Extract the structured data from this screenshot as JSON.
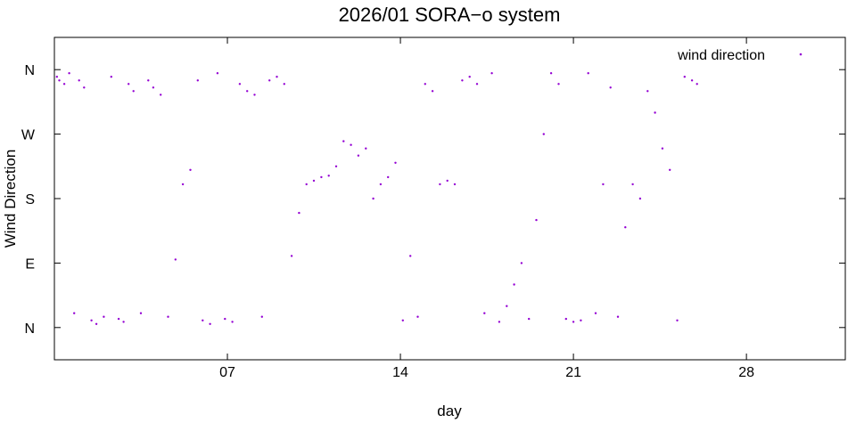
{
  "chart_data": {
    "type": "scatter",
    "title": "2026/01 SORA−o system",
    "xlabel": "day",
    "ylabel": "Wind Direction",
    "xlim": [
      0,
      32
    ],
    "ylim": [
      -45,
      405
    ],
    "x_ticks": [
      {
        "value": 7,
        "label": "07"
      },
      {
        "value": 14,
        "label": "14"
      },
      {
        "value": 21,
        "label": "21"
      },
      {
        "value": 28,
        "label": "28"
      }
    ],
    "y_ticks": [
      {
        "value": 0,
        "label": "N"
      },
      {
        "value": 90,
        "label": "E"
      },
      {
        "value": 180,
        "label": "S"
      },
      {
        "value": 270,
        "label": "W"
      },
      {
        "value": 360,
        "label": "N"
      }
    ],
    "legend": {
      "position": "top-right"
    },
    "grid": false,
    "series": [
      {
        "name": "wind direction",
        "color": "#9400d3",
        "points": [
          [
            0.1,
            350
          ],
          [
            0.2,
            345
          ],
          [
            0.4,
            340
          ],
          [
            0.6,
            355
          ],
          [
            0.8,
            20
          ],
          [
            1.0,
            345
          ],
          [
            1.2,
            335
          ],
          [
            1.5,
            10
          ],
          [
            1.7,
            5
          ],
          [
            2.0,
            15
          ],
          [
            2.3,
            350
          ],
          [
            2.6,
            12
          ],
          [
            2.8,
            8
          ],
          [
            3.0,
            340
          ],
          [
            3.2,
            330
          ],
          [
            3.5,
            20
          ],
          [
            3.8,
            345
          ],
          [
            4.0,
            335
          ],
          [
            4.3,
            325
          ],
          [
            4.6,
            15
          ],
          [
            4.9,
            95
          ],
          [
            5.2,
            200
          ],
          [
            5.5,
            220
          ],
          [
            5.8,
            345
          ],
          [
            6.0,
            10
          ],
          [
            6.3,
            5
          ],
          [
            6.6,
            355
          ],
          [
            6.9,
            12
          ],
          [
            7.2,
            8
          ],
          [
            7.5,
            340
          ],
          [
            7.8,
            330
          ],
          [
            8.1,
            325
          ],
          [
            8.4,
            15
          ],
          [
            8.7,
            345
          ],
          [
            9.0,
            350
          ],
          [
            9.3,
            340
          ],
          [
            9.6,
            100
          ],
          [
            9.9,
            160
          ],
          [
            10.2,
            200
          ],
          [
            10.5,
            205
          ],
          [
            10.8,
            210
          ],
          [
            11.1,
            212
          ],
          [
            11.4,
            225
          ],
          [
            11.7,
            260
          ],
          [
            12.0,
            255
          ],
          [
            12.3,
            240
          ],
          [
            12.6,
            250
          ],
          [
            12.9,
            180
          ],
          [
            13.2,
            200
          ],
          [
            13.5,
            210
          ],
          [
            13.8,
            230
          ],
          [
            14.1,
            10
          ],
          [
            14.4,
            100
          ],
          [
            14.7,
            15
          ],
          [
            15.0,
            340
          ],
          [
            15.3,
            330
          ],
          [
            15.6,
            200
          ],
          [
            15.9,
            205
          ],
          [
            16.2,
            200
          ],
          [
            16.5,
            345
          ],
          [
            16.8,
            350
          ],
          [
            17.1,
            340
          ],
          [
            17.4,
            20
          ],
          [
            17.7,
            355
          ],
          [
            18.0,
            8
          ],
          [
            18.3,
            30
          ],
          [
            18.6,
            60
          ],
          [
            18.9,
            90
          ],
          [
            19.2,
            12
          ],
          [
            19.5,
            150
          ],
          [
            19.8,
            270
          ],
          [
            20.1,
            355
          ],
          [
            20.4,
            340
          ],
          [
            20.7,
            12
          ],
          [
            21.0,
            8
          ],
          [
            21.3,
            10
          ],
          [
            21.6,
            355
          ],
          [
            21.9,
            20
          ],
          [
            22.2,
            200
          ],
          [
            22.5,
            335
          ],
          [
            22.8,
            15
          ],
          [
            23.1,
            140
          ],
          [
            23.4,
            200
          ],
          [
            23.7,
            180
          ],
          [
            24.0,
            330
          ],
          [
            24.3,
            300
          ],
          [
            24.6,
            250
          ],
          [
            24.9,
            220
          ],
          [
            25.2,
            10
          ],
          [
            25.5,
            350
          ],
          [
            25.8,
            345
          ],
          [
            26.0,
            340
          ]
        ]
      }
    ]
  }
}
